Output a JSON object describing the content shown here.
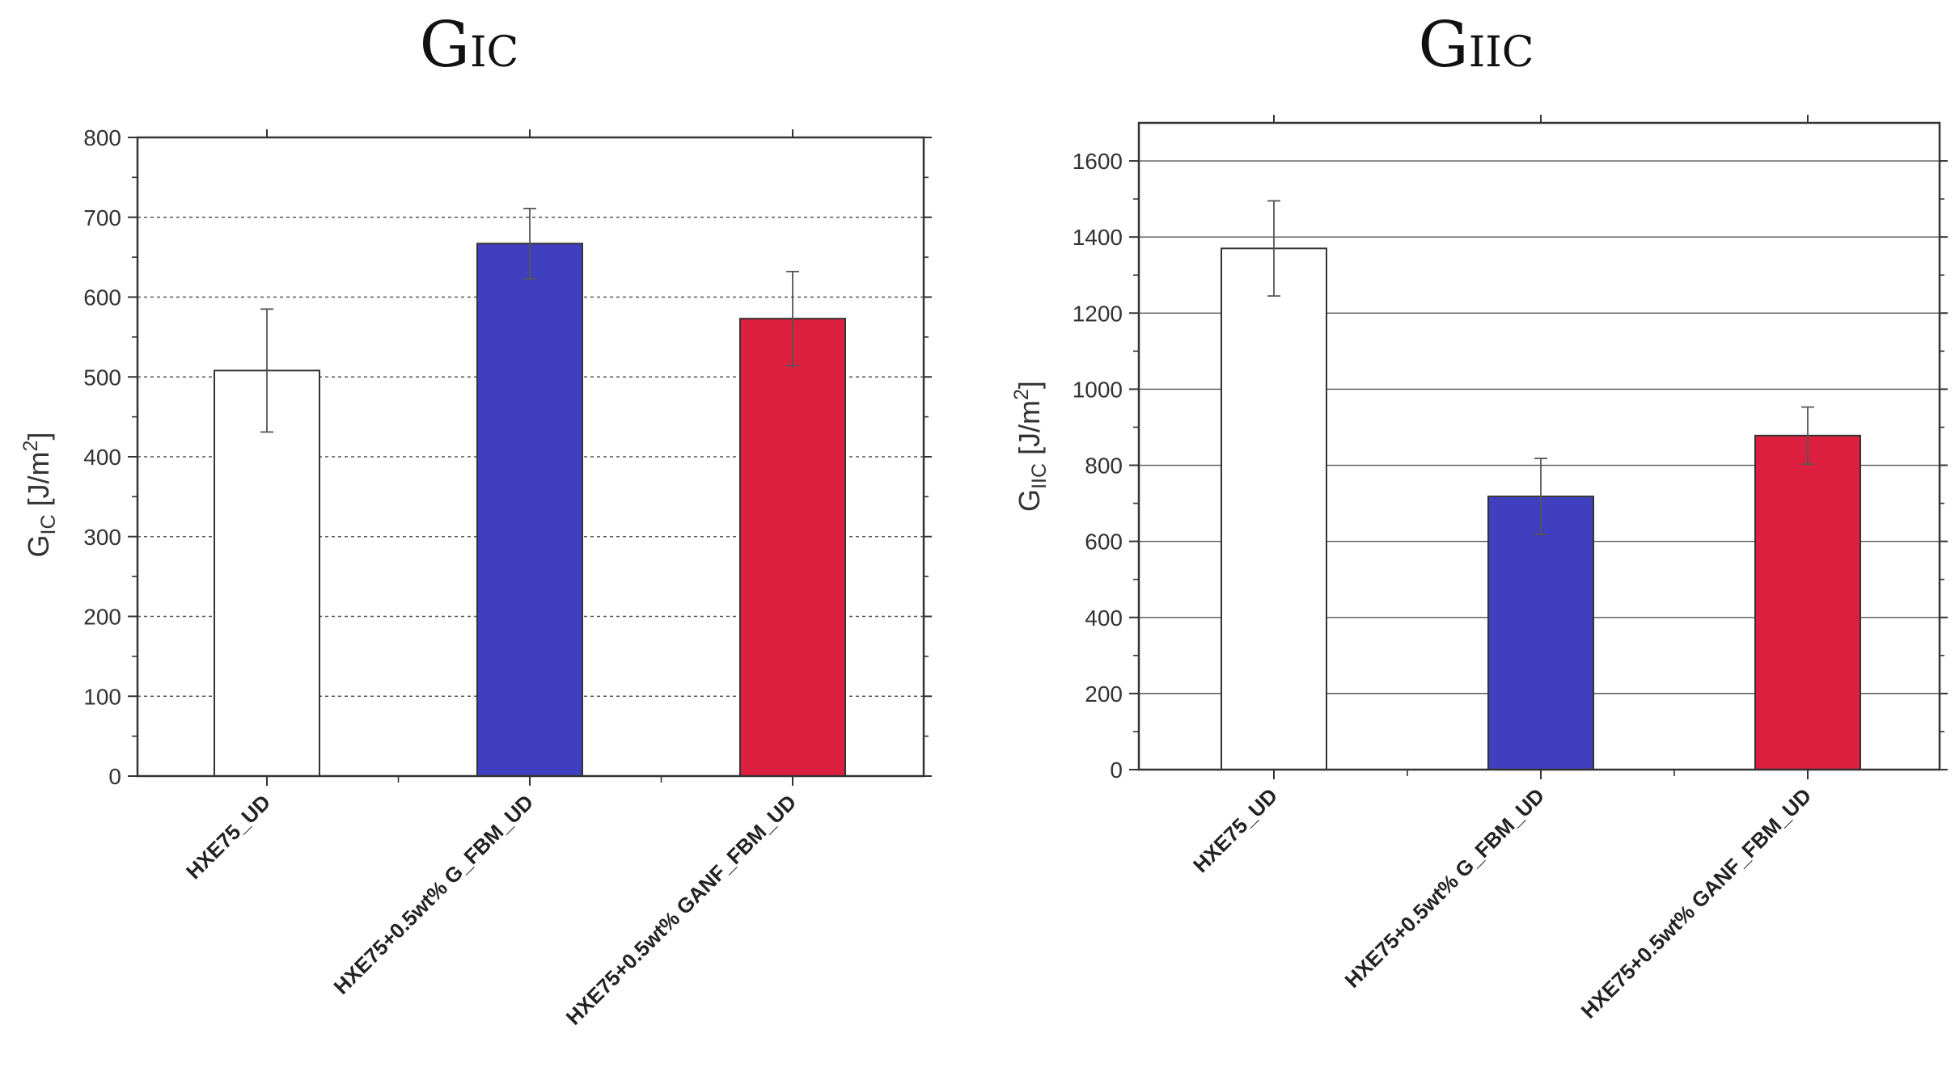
{
  "colors": {
    "bar_fill": [
      "#ffffff",
      "#3f3fbf",
      "#dd1f40"
    ],
    "bar_stroke": "#333333",
    "error_bar": "#555555",
    "axis": "#333333",
    "grid": "#555555"
  },
  "chart_data": [
    {
      "type": "bar",
      "title": "GIC",
      "title_main": "G",
      "title_sub": "IC",
      "ylabel_main": "G",
      "ylabel_sub": "IC",
      "ylabel_unit_pre": " [J/m",
      "ylabel_unit_sup": "2",
      "ylabel_unit_post": "]",
      "xlabel": "",
      "categories": [
        "HXE75_UD",
        "HXE75+0.5wt% G_FBM_UD",
        "HXE75+0.5wt% GANF_FBM_UD"
      ],
      "values": [
        508,
        667,
        573
      ],
      "errors": [
        77,
        44,
        59
      ],
      "ylim": [
        0,
        800
      ],
      "yticks": [
        0,
        100,
        200,
        300,
        400,
        500,
        600,
        700,
        800
      ],
      "grid": "dashed"
    },
    {
      "type": "bar",
      "title": "GIIC",
      "title_main": "G",
      "title_sub": "IIC",
      "ylabel_main": "G",
      "ylabel_sub": "IIC",
      "ylabel_unit_pre": " [J/m",
      "ylabel_unit_sup": "2",
      "ylabel_unit_post": "]",
      "xlabel": "",
      "categories": [
        "HXE75_UD",
        "HXE75+0.5wt% G_FBM_UD",
        "HXE75+0.5wt% GANF_FBM_UD"
      ],
      "values": [
        1370,
        718,
        878
      ],
      "errors": [
        125,
        100,
        75
      ],
      "ylim": [
        0,
        1700
      ],
      "yticks": [
        0,
        200,
        400,
        600,
        800,
        1000,
        1200,
        1400,
        1600
      ],
      "grid": "solid"
    }
  ]
}
